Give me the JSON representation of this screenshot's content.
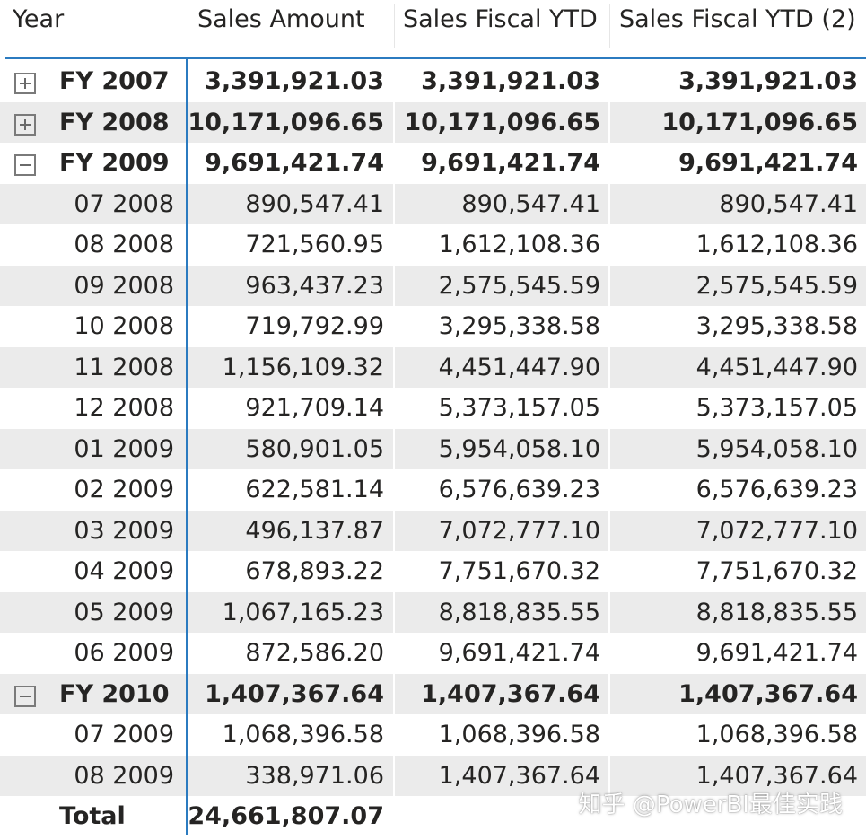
{
  "header": {
    "year": "Year",
    "sales_amount": "Sales Amount",
    "sales_fiscal_ytd": "Sales Fiscal YTD",
    "sales_fiscal_ytd_2": "Sales Fiscal YTD (2)"
  },
  "rows": [
    {
      "type": "group",
      "expanded": false,
      "label": "FY 2007",
      "sales_amount": "3,391,921.03",
      "ytd": "3,391,921.03",
      "ytd2": "3,391,921.03"
    },
    {
      "type": "group",
      "expanded": false,
      "label": "FY 2008",
      "sales_amount": "10,171,096.65",
      "ytd": "10,171,096.65",
      "ytd2": "10,171,096.65"
    },
    {
      "type": "group",
      "expanded": true,
      "label": "FY 2009",
      "sales_amount": "9,691,421.74",
      "ytd": "9,691,421.74",
      "ytd2": "9,691,421.74"
    },
    {
      "type": "child",
      "label": "07 2008",
      "sales_amount": "890,547.41",
      "ytd": "890,547.41",
      "ytd2": "890,547.41"
    },
    {
      "type": "child",
      "label": "08 2008",
      "sales_amount": "721,560.95",
      "ytd": "1,612,108.36",
      "ytd2": "1,612,108.36"
    },
    {
      "type": "child",
      "label": "09 2008",
      "sales_amount": "963,437.23",
      "ytd": "2,575,545.59",
      "ytd2": "2,575,545.59"
    },
    {
      "type": "child",
      "label": "10 2008",
      "sales_amount": "719,792.99",
      "ytd": "3,295,338.58",
      "ytd2": "3,295,338.58"
    },
    {
      "type": "child",
      "label": "11 2008",
      "sales_amount": "1,156,109.32",
      "ytd": "4,451,447.90",
      "ytd2": "4,451,447.90"
    },
    {
      "type": "child",
      "label": "12 2008",
      "sales_amount": "921,709.14",
      "ytd": "5,373,157.05",
      "ytd2": "5,373,157.05"
    },
    {
      "type": "child",
      "label": "01 2009",
      "sales_amount": "580,901.05",
      "ytd": "5,954,058.10",
      "ytd2": "5,954,058.10"
    },
    {
      "type": "child",
      "label": "02 2009",
      "sales_amount": "622,581.14",
      "ytd": "6,576,639.23",
      "ytd2": "6,576,639.23"
    },
    {
      "type": "child",
      "label": "03 2009",
      "sales_amount": "496,137.87",
      "ytd": "7,072,777.10",
      "ytd2": "7,072,777.10"
    },
    {
      "type": "child",
      "label": "04 2009",
      "sales_amount": "678,893.22",
      "ytd": "7,751,670.32",
      "ytd2": "7,751,670.32"
    },
    {
      "type": "child",
      "label": "05 2009",
      "sales_amount": "1,067,165.23",
      "ytd": "8,818,835.55",
      "ytd2": "8,818,835.55"
    },
    {
      "type": "child",
      "label": "06 2009",
      "sales_amount": "872,586.20",
      "ytd": "9,691,421.74",
      "ytd2": "9,691,421.74"
    },
    {
      "type": "group",
      "expanded": true,
      "label": "FY 2010",
      "sales_amount": "1,407,367.64",
      "ytd": "1,407,367.64",
      "ytd2": "1,407,367.64"
    },
    {
      "type": "child",
      "label": "07 2009",
      "sales_amount": "1,068,396.58",
      "ytd": "1,068,396.58",
      "ytd2": "1,068,396.58"
    },
    {
      "type": "child",
      "label": "08 2009",
      "sales_amount": "338,971.06",
      "ytd": "1,407,367.64",
      "ytd2": "1,407,367.64"
    },
    {
      "type": "total",
      "label": "Total",
      "sales_amount": "24,661,807.07",
      "ytd": "",
      "ytd2": ""
    }
  ],
  "watermark": "知乎 @PowerBI最佳实践",
  "colors": {
    "accent": "#2b7bc0",
    "stripe": "#ebebeb",
    "text": "#252423"
  }
}
